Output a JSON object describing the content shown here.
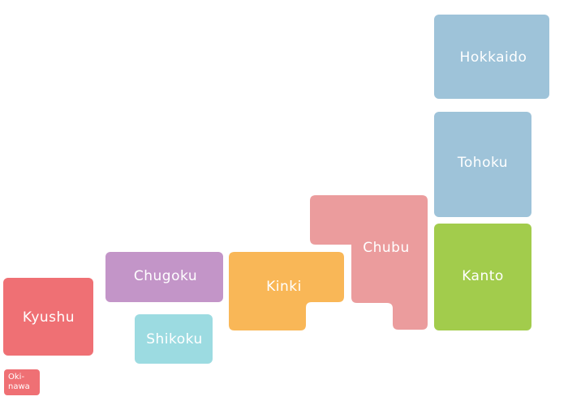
{
  "map": {
    "regions": [
      {
        "id": "hokkaido",
        "label": "Hokkaido",
        "color": "#9ec3d9"
      },
      {
        "id": "tohoku",
        "label": "Tohoku",
        "color": "#9ec3d9"
      },
      {
        "id": "kanto",
        "label": "Kanto",
        "color": "#a2cc4c"
      },
      {
        "id": "chubu",
        "label": "Chubu",
        "color": "#eb9c9d"
      },
      {
        "id": "kinki",
        "label": "Kinki",
        "color": "#f9b757"
      },
      {
        "id": "chugoku",
        "label": "Chugoku",
        "color": "#c395c8"
      },
      {
        "id": "shikoku",
        "label": "Shikoku",
        "color": "#9cdbe1"
      },
      {
        "id": "kyushu",
        "label": "Kyushu",
        "color": "#ef7074"
      },
      {
        "id": "okinawa",
        "label_line1": "Oki-",
        "label_line2": "nawa",
        "color": "#ef7074"
      }
    ]
  }
}
